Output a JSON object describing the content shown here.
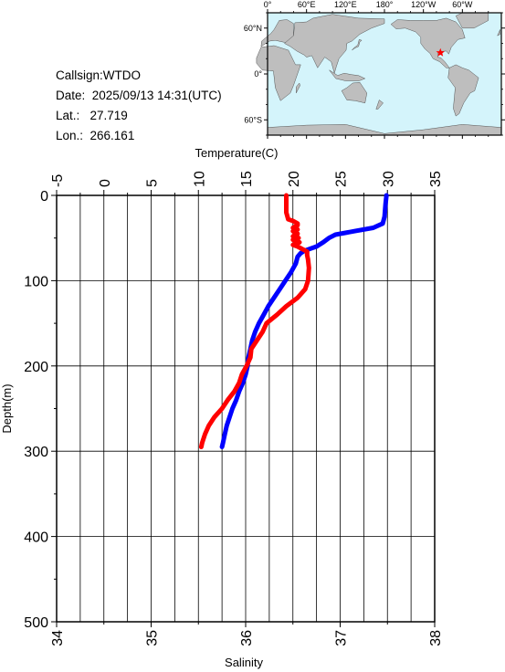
{
  "station": {
    "callsign": "Callsign:WTDO",
    "date": "Date:  2025/09/13 14:31(UTC)",
    "lat": "Lat.:   27.719",
    "lon": "Lon.:  266.161"
  },
  "map": {
    "lon_labels": [
      "0°",
      "60°E",
      "120°E",
      "180°",
      "120°W",
      "60°W"
    ],
    "lat_labels": [
      "60°N",
      "0°",
      "60°S"
    ],
    "ocean_color": "#d4f4fb",
    "land_color": "#bebebe",
    "marker_color": "#ff0000",
    "marker": {
      "lat": 27.719,
      "lon": 266.161
    }
  },
  "chart_data": {
    "type": "line",
    "ylabel": "Depth(m)",
    "top_axis_label": "Temperature(C)",
    "bottom_axis_label": "Salinity",
    "depth_range": [
      0,
      500
    ],
    "temperature_range": [
      -5,
      35
    ],
    "salinity_range": [
      34,
      38
    ],
    "depth_ticks": [
      0,
      100,
      200,
      300,
      400,
      500
    ],
    "temperature_ticks": [
      -5,
      0,
      5,
      10,
      15,
      20,
      25,
      30,
      35
    ],
    "salinity_ticks": [
      34,
      35,
      36,
      37,
      38
    ],
    "grid": true,
    "series": [
      {
        "color": "#0000ff",
        "axis": "temperature",
        "points": [
          [
            0,
            29.9
          ],
          [
            10,
            29.8
          ],
          [
            25,
            29.7
          ],
          [
            33,
            29.5
          ],
          [
            38,
            28.5
          ],
          [
            42,
            26.5
          ],
          [
            46,
            24.5
          ],
          [
            50,
            23.8
          ],
          [
            55,
            23.2
          ],
          [
            60,
            22.5
          ],
          [
            65,
            21.2
          ],
          [
            68,
            20.8
          ],
          [
            72,
            20.5
          ],
          [
            80,
            20.3
          ],
          [
            90,
            19.8
          ],
          [
            100,
            19.2
          ],
          [
            110,
            18.6
          ],
          [
            120,
            18.0
          ],
          [
            130,
            17.4
          ],
          [
            140,
            16.9
          ],
          [
            150,
            16.4
          ],
          [
            160,
            16.0
          ],
          [
            170,
            15.7
          ],
          [
            180,
            15.5
          ],
          [
            190,
            15.3
          ],
          [
            200,
            15.2
          ],
          [
            210,
            15.0
          ],
          [
            220,
            14.7
          ],
          [
            230,
            14.3
          ],
          [
            240,
            14.0
          ],
          [
            250,
            13.6
          ],
          [
            260,
            13.3
          ],
          [
            270,
            13.0
          ],
          [
            280,
            12.8
          ],
          [
            290,
            12.6
          ],
          [
            295,
            12.5
          ]
        ]
      },
      {
        "color": "#ff0000",
        "axis": "salinity",
        "points": [
          [
            0,
            36.43
          ],
          [
            10,
            36.43
          ],
          [
            20,
            36.43
          ],
          [
            28,
            36.45
          ],
          [
            30,
            36.5
          ],
          [
            33,
            36.55
          ],
          [
            35,
            36.55
          ],
          [
            38,
            36.5
          ],
          [
            40,
            36.55
          ],
          [
            42,
            36.5
          ],
          [
            45,
            36.55
          ],
          [
            48,
            36.5
          ],
          [
            50,
            36.56
          ],
          [
            52,
            36.5
          ],
          [
            55,
            36.57
          ],
          [
            58,
            36.5
          ],
          [
            60,
            36.55
          ],
          [
            63,
            36.6
          ],
          [
            66,
            36.65
          ],
          [
            70,
            36.65
          ],
          [
            75,
            36.66
          ],
          [
            85,
            36.67
          ],
          [
            100,
            36.66
          ],
          [
            110,
            36.63
          ],
          [
            120,
            36.55
          ],
          [
            130,
            36.43
          ],
          [
            140,
            36.33
          ],
          [
            150,
            36.22
          ],
          [
            160,
            36.18
          ],
          [
            170,
            36.12
          ],
          [
            180,
            36.06
          ],
          [
            190,
            36.05
          ],
          [
            200,
            36.01
          ],
          [
            210,
            35.96
          ],
          [
            220,
            35.93
          ],
          [
            230,
            35.88
          ],
          [
            240,
            35.81
          ],
          [
            250,
            35.75
          ],
          [
            260,
            35.67
          ],
          [
            270,
            35.61
          ],
          [
            280,
            35.57
          ],
          [
            290,
            35.54
          ],
          [
            295,
            35.53
          ]
        ]
      }
    ]
  }
}
